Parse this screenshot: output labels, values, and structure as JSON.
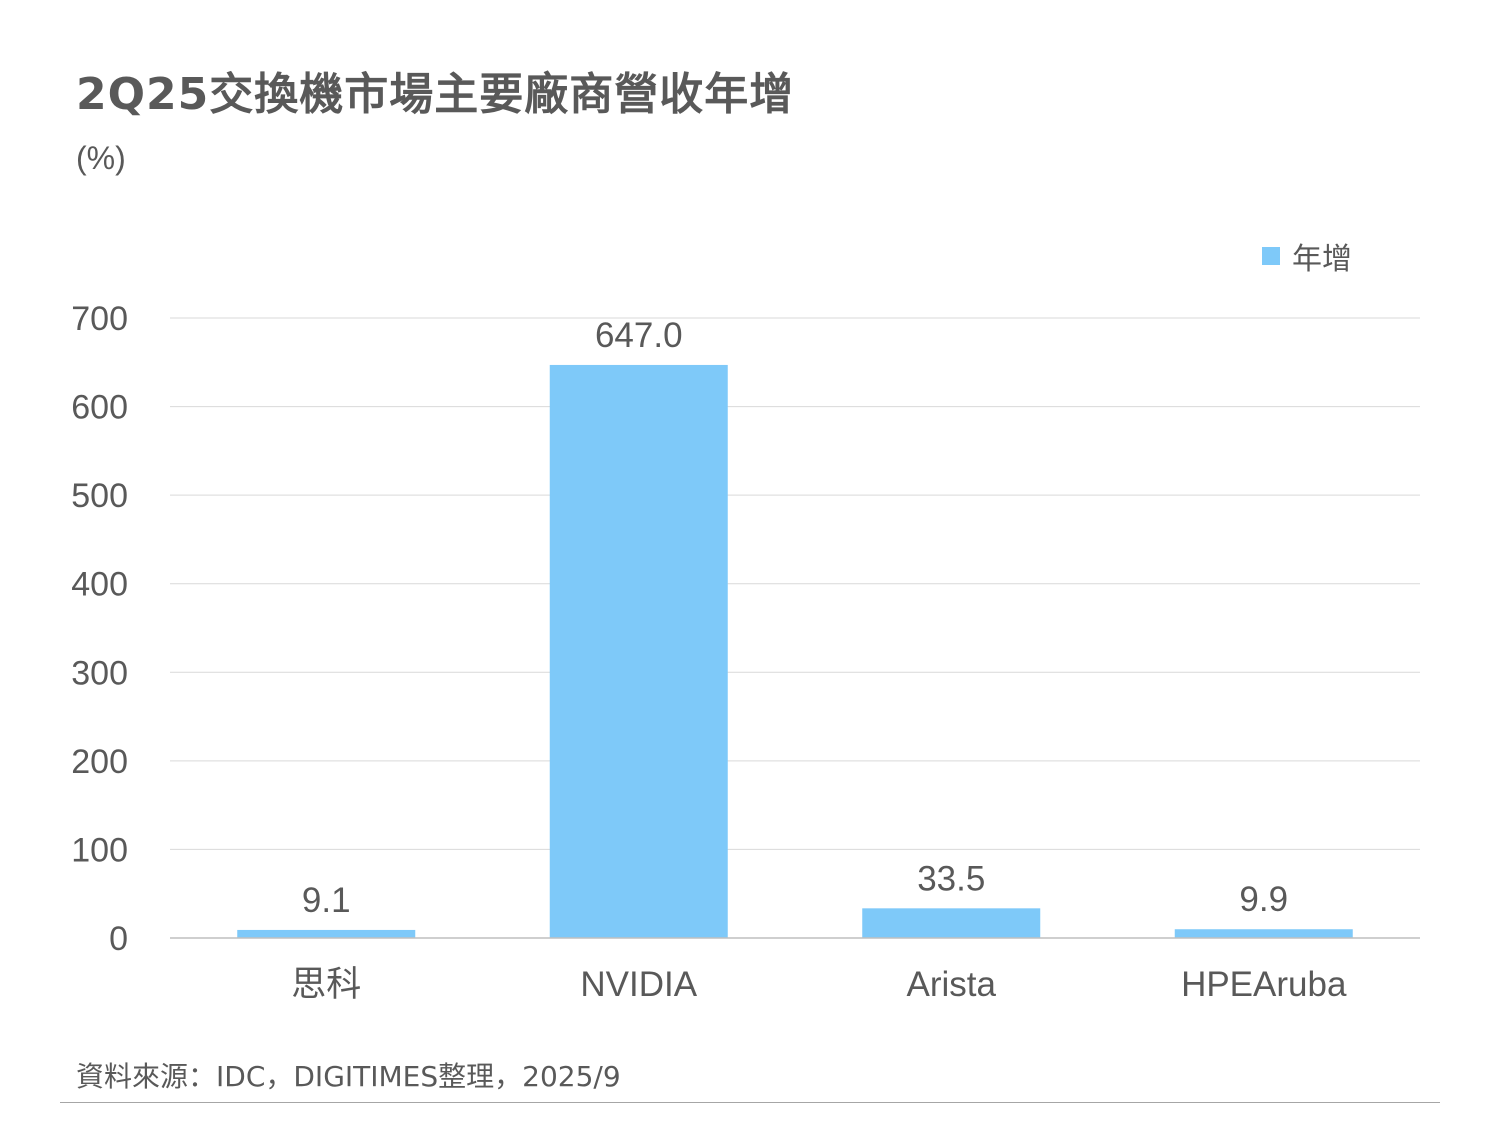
{
  "title": "2Q25交換機市場主要廠商營收年增",
  "unit": "(%)",
  "source": "資料來源：IDC，DIGITIMES整理，2025/9",
  "colors": {
    "bar": "#7ec9f9",
    "grid": "#d9d9d9",
    "axis": "#bfbfbf",
    "text": "#595959"
  },
  "chart_data": {
    "type": "bar",
    "categories": [
      "思科",
      "NVIDIA",
      "Arista",
      "HPEAruba"
    ],
    "series": [
      {
        "name": "年增",
        "values": [
          9.1,
          647.0,
          33.5,
          9.9
        ],
        "labels": [
          "9.1",
          "647.0",
          "33.5",
          "9.9"
        ]
      }
    ],
    "ylim": [
      0,
      700
    ],
    "yticks": [
      0,
      100,
      200,
      300,
      400,
      500,
      600,
      700
    ],
    "ylabel": "(%)",
    "legend": "top-right",
    "grid": true
  }
}
